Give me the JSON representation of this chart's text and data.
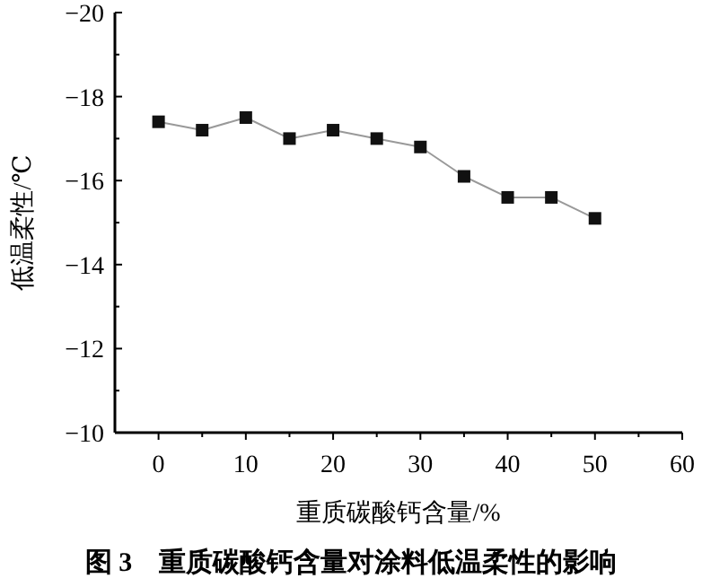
{
  "chart_data": {
    "type": "line",
    "xlabel": "重质碳酸钙含量/%",
    "ylabel": "低温柔性/℃",
    "annotations": [
      "图 3　重质碳酸钙含量对涂料低温柔性的影响"
    ],
    "x": [
      0,
      5,
      10,
      15,
      20,
      25,
      30,
      35,
      40,
      45,
      50
    ],
    "series": [
      {
        "color": "#111111",
        "values": [
          -17.4,
          -17.2,
          -17.5,
          -17.0,
          -17.2,
          -17.0,
          -16.8,
          -16.1,
          -15.6,
          -15.6,
          -15.1
        ]
      }
    ],
    "xlim": [
      -5,
      60
    ],
    "xticks": [
      0,
      {
        "value": 5,
        "label": null
      },
      10,
      {
        "value": 15,
        "label": null
      },
      20,
      {
        "value": 25,
        "label": null
      },
      30,
      {
        "value": 35,
        "label": null
      },
      40,
      {
        "value": 45,
        "label": null
      },
      50,
      {
        "value": 55,
        "label": null
      },
      60
    ],
    "ylim": [
      -10,
      -20
    ],
    "yticks": [
      -20,
      {
        "value": -19,
        "label": null
      },
      -18,
      {
        "value": -17,
        "label": null
      },
      -16,
      {
        "value": -15,
        "label": null
      },
      -14,
      {
        "value": -13,
        "label": null
      },
      -12,
      {
        "value": -11,
        "label": null
      },
      -10
    ],
    "marker": "square",
    "line_style": "solid",
    "grid": false
  }
}
